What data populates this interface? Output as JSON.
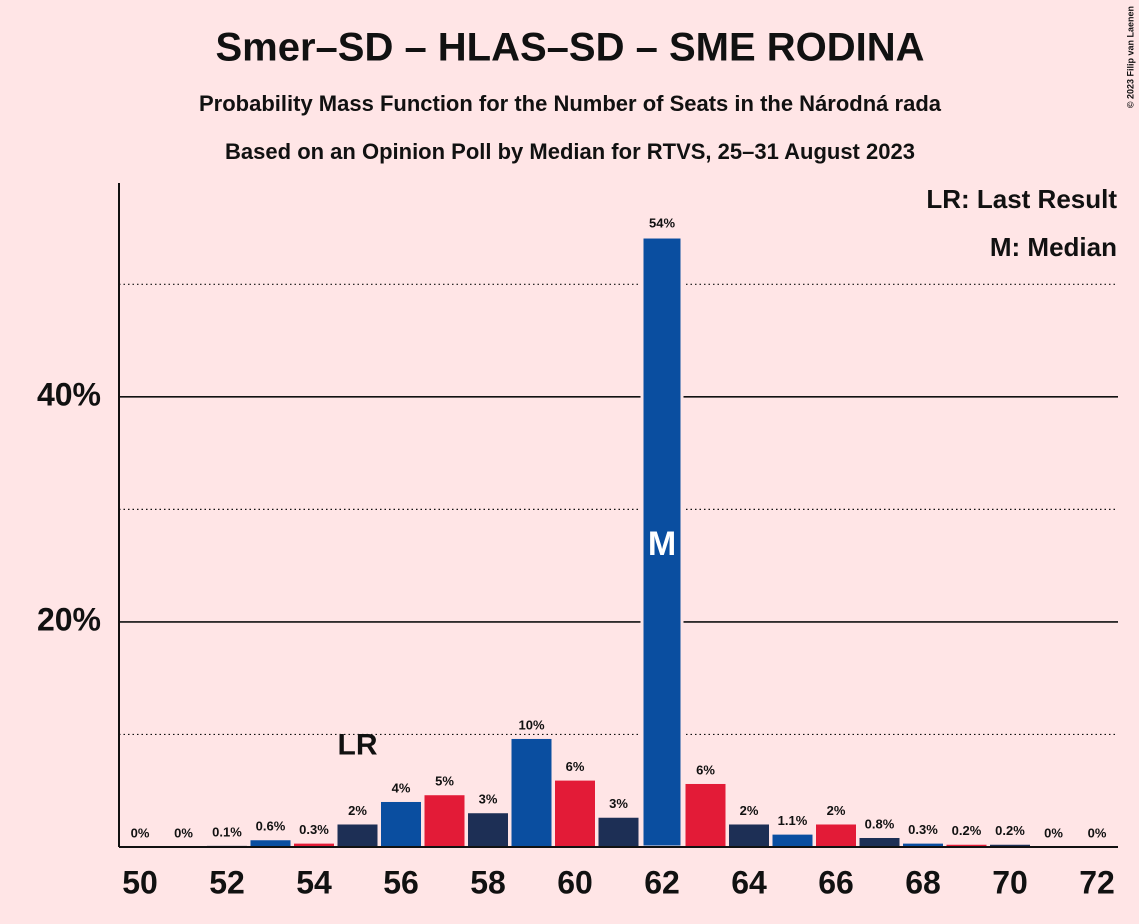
{
  "chart_data": {
    "type": "bar",
    "title": "Smer–SD – HLAS–SD – SME RODINA",
    "subtitle": "Probability Mass Function for the Number of Seats in the Národná rada",
    "subtitle2": "Based on an Opinion Poll by Median for RTVS, 25–31 August 2023",
    "copyright": "© 2023 Filip van Laenen",
    "categories": [
      50,
      null,
      52,
      null,
      54,
      null,
      56,
      null,
      58,
      null,
      60,
      null,
      62,
      null,
      64,
      null,
      66,
      null,
      68,
      null,
      70,
      null,
      72
    ],
    "values": [
      0,
      0,
      0.1,
      0.6,
      0.3,
      2,
      4,
      4.6,
      3,
      9.6,
      5.9,
      2.6,
      54.2,
      5.6,
      2,
      1.1,
      2,
      0.8,
      0.3,
      0.2,
      0.2,
      0,
      0
    ],
    "value_labels": [
      "0%",
      "0%",
      "0.1%",
      "0.6%",
      "0.3%",
      "2%",
      "4%",
      "5%",
      "3%",
      "10%",
      "6%",
      "3%",
      "54%",
      "6%",
      "2%",
      "1.1%",
      "2%",
      "0.8%",
      "0.3%",
      "0.2%",
      "0.2%",
      "0%",
      "0%"
    ],
    "colors": [
      "#0a4ea0",
      "#e31b37",
      "#1d2f55",
      "#0a4ea0",
      "#e31b37",
      "#1d2f55",
      "#0a4ea0",
      "#e31b37",
      "#1d2f55",
      "#0a4ea0",
      "#e31b37",
      "#1d2f55",
      "#0a4ea0",
      "#e31b37",
      "#1d2f55",
      "#0a4ea0",
      "#e31b37",
      "#1d2f55",
      "#0a4ea0",
      "#e31b37",
      "#1d2f55",
      "#0a4ea0",
      "#e31b37"
    ],
    "ylim": [
      0,
      59
    ],
    "yticks": [
      {
        "value": 20,
        "label": "20%"
      },
      {
        "value": 40,
        "label": "40%"
      }
    ],
    "minor_grid": [
      10,
      30,
      50
    ],
    "grid": true,
    "last_result": {
      "label": "LR",
      "seats": 55
    },
    "median": {
      "label": "M",
      "seats": 62
    },
    "legend": [
      "LR: Last Result",
      "M: Median"
    ],
    "legend_position": "upper right"
  }
}
